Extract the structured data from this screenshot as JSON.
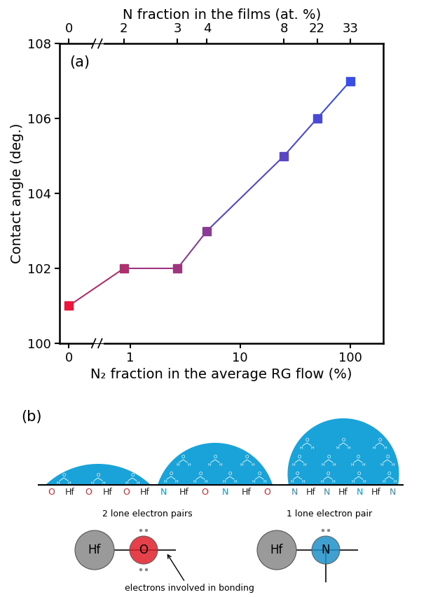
{
  "chart_data": {
    "type": "line",
    "panel_label": "(a)",
    "x_label": "N₂ fraction in the average RG flow (%)",
    "y_label": "Contact angle (deg.)",
    "x2_label": "N fraction in the films (at. %)",
    "x": [
      0,
      0.9,
      2.7,
      5,
      25,
      50,
      100
    ],
    "values": [
      101,
      102,
      102,
      103,
      105,
      106,
      107
    ],
    "colors": [
      "#e8173c",
      "#b02f6e",
      "#9e3580",
      "#8a3b96",
      "#5a45c6",
      "#4a49d6",
      "#3a4ee6"
    ],
    "marker": "square",
    "line_style": "solid",
    "log": "x",
    "xlim": [
      -0.15,
      200
    ],
    "xticks": [
      0,
      1,
      10,
      100
    ],
    "ylim": [
      100,
      108
    ],
    "yticks": [
      100,
      102,
      104,
      106,
      108
    ],
    "x2ticks": [
      {
        "value": 0,
        "label": "0"
      },
      {
        "value": 0.9,
        "label": "2"
      },
      {
        "value": 2.7,
        "label": "3"
      },
      {
        "value": 5,
        "label": "4"
      },
      {
        "value": 25,
        "label": "8"
      },
      {
        "value": 50,
        "label": "22"
      },
      {
        "value": 100,
        "label": "33"
      }
    ]
  },
  "diagram": {
    "panel_label": "(b)",
    "drop_color": "#1aa3d9",
    "element_colors": {
      "O": "#e0202a",
      "N": "#1e8fc8",
      "Hf": "#222222"
    },
    "water_molecule": [
      "H",
      "O",
      "H"
    ],
    "drops": [
      {
        "surface": [
          "O",
          "Hf",
          "O",
          "Hf",
          "O",
          "Hf"
        ]
      },
      {
        "surface": [
          "N",
          "Hf",
          "O",
          "N",
          "Hf",
          "O"
        ]
      },
      {
        "surface": [
          "N",
          "Hf",
          "N",
          "Hf",
          "N",
          "Hf",
          "N"
        ]
      }
    ],
    "bonding_models": [
      {
        "metal": "Hf",
        "ligand": "O",
        "bonds": 2,
        "lone_pairs": 2,
        "note": "2 lone electron pairs"
      },
      {
        "metal": "Hf",
        "ligand": "N",
        "bonds": 3,
        "lone_pairs": 1,
        "note": "1 lone electron pair"
      }
    ],
    "bond_arrow_label": "electrons involved in bonding"
  }
}
